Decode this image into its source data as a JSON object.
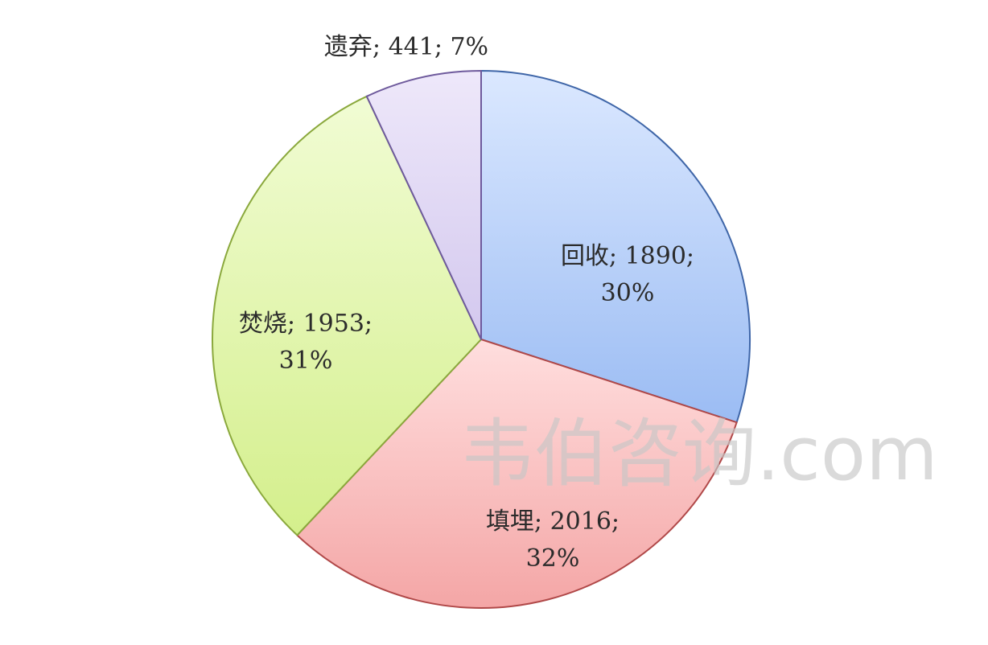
{
  "chart_data": {
    "type": "pie",
    "slices": [
      {
        "name": "回收",
        "value": 1890,
        "percent": "30%",
        "label_line1": "回收; 1890;",
        "label_line2": "30%",
        "fill_light": "#dbe8ff",
        "fill_dark": "#9bbcf3",
        "stroke": "#3f66a8"
      },
      {
        "name": "填埋",
        "value": 2016,
        "percent": "32%",
        "label_line1": "填埋; 2016;",
        "label_line2": "32%",
        "fill_light": "#ffdede",
        "fill_dark": "#f4a6a6",
        "stroke": "#b04848"
      },
      {
        "name": "焚烧",
        "value": 1953,
        "percent": "31%",
        "label_line1": "焚烧; 1953;",
        "label_line2": "31%",
        "fill_light": "#f1fcd4",
        "fill_dark": "#d4ef8c",
        "stroke": "#8aa83c"
      },
      {
        "name": "遗弃",
        "value": 441,
        "percent": "7%",
        "label_line1": "遗弃; 441; 7%",
        "label_line2": "",
        "fill_light": "#eee8fa",
        "fill_dark": "#d3c8ee",
        "stroke": "#6e5a9c"
      }
    ],
    "start_angle_deg": 0,
    "direction": "clockwise"
  },
  "watermark": "韦伯咨询.com"
}
